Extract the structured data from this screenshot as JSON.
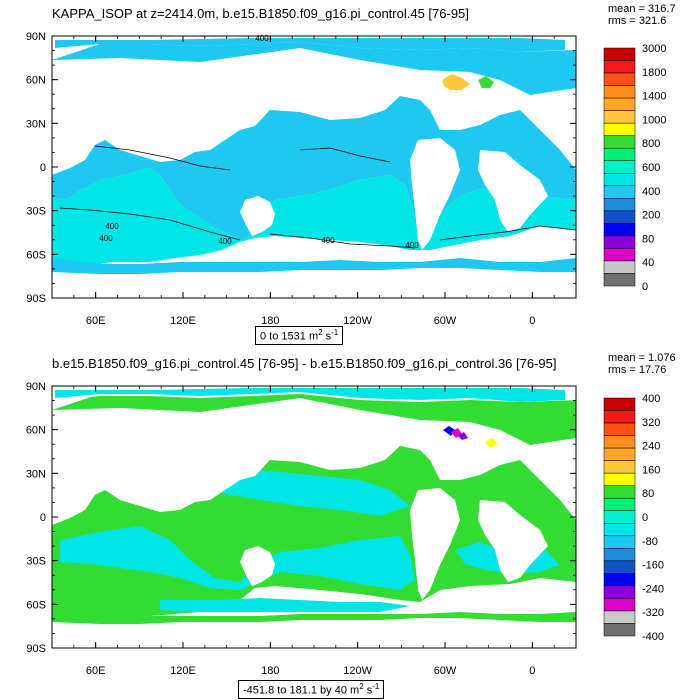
{
  "chart_data": [
    {
      "type": "heatmap",
      "title": "KAPPA_ISOP at z=2414.0m, b.e15.B1850.f09_g16.pi_control.45 [76-95]",
      "stats": {
        "mean_label": "mean = 316.7",
        "rms_label": "rms = 321.6"
      },
      "range_label": "0 to 1531",
      "units_label": "m",
      "units_exp1": "2",
      "units_s": " s",
      "units_exp2": "-1",
      "x_ticks": [
        "60E",
        "120E",
        "180",
        "120W",
        "60W",
        "0"
      ],
      "y_ticks": [
        "90N",
        "60N",
        "30N",
        "0",
        "30S",
        "60S",
        "90S"
      ],
      "contour_labels": [
        "400",
        "400",
        "400",
        "400",
        "400",
        "400"
      ],
      "colorbar": {
        "labels": [
          "3000",
          "1800",
          "1400",
          "1000",
          "800",
          "600",
          "400",
          "200",
          "80",
          "40",
          "0"
        ],
        "colors": [
          "#c80000",
          "#f01818",
          "#ff5014",
          "#ff8c1e",
          "#ffa628",
          "#ffc83c",
          "#ffff00",
          "#32dc32",
          "#00f078",
          "#00f0c8",
          "#00e6e6",
          "#1ec8f0",
          "#1e8cdc",
          "#1450c8",
          "#0000f0",
          "#8c00dc",
          "#dc00c8",
          "#c8c8c8",
          "#707070"
        ]
      }
    },
    {
      "type": "heatmap",
      "title": "b.e15.B1850.f09_g16.pi_control.45 [76-95] - b.e15.B1850.f09_g16.pi_control.36 [76-95]",
      "stats": {
        "mean_label": "mean = 1.076",
        "rms_label": "rms = 17.76"
      },
      "range_label": "-451.8 to 181.1 by 40",
      "units_label": "m",
      "units_exp1": "2",
      "units_s": " s",
      "units_exp2": "-1",
      "x_ticks": [
        "60E",
        "120E",
        "180",
        "120W",
        "60W",
        "0"
      ],
      "y_ticks": [
        "90N",
        "60N",
        "30N",
        "0",
        "30S",
        "60S",
        "90S"
      ],
      "colorbar": {
        "labels": [
          "400",
          "320",
          "240",
          "160",
          "80",
          "0",
          "-80",
          "-160",
          "-240",
          "-320",
          "-400"
        ],
        "colors": [
          "#c80000",
          "#f01818",
          "#ff5014",
          "#ff8c1e",
          "#ffa628",
          "#ffc83c",
          "#ffff00",
          "#32dc32",
          "#00f078",
          "#00f0c8",
          "#00e6e6",
          "#1ec8f0",
          "#1e8cdc",
          "#1450c8",
          "#0000f0",
          "#8c00dc",
          "#dc00c8",
          "#c8c8c8",
          "#707070"
        ]
      }
    }
  ]
}
